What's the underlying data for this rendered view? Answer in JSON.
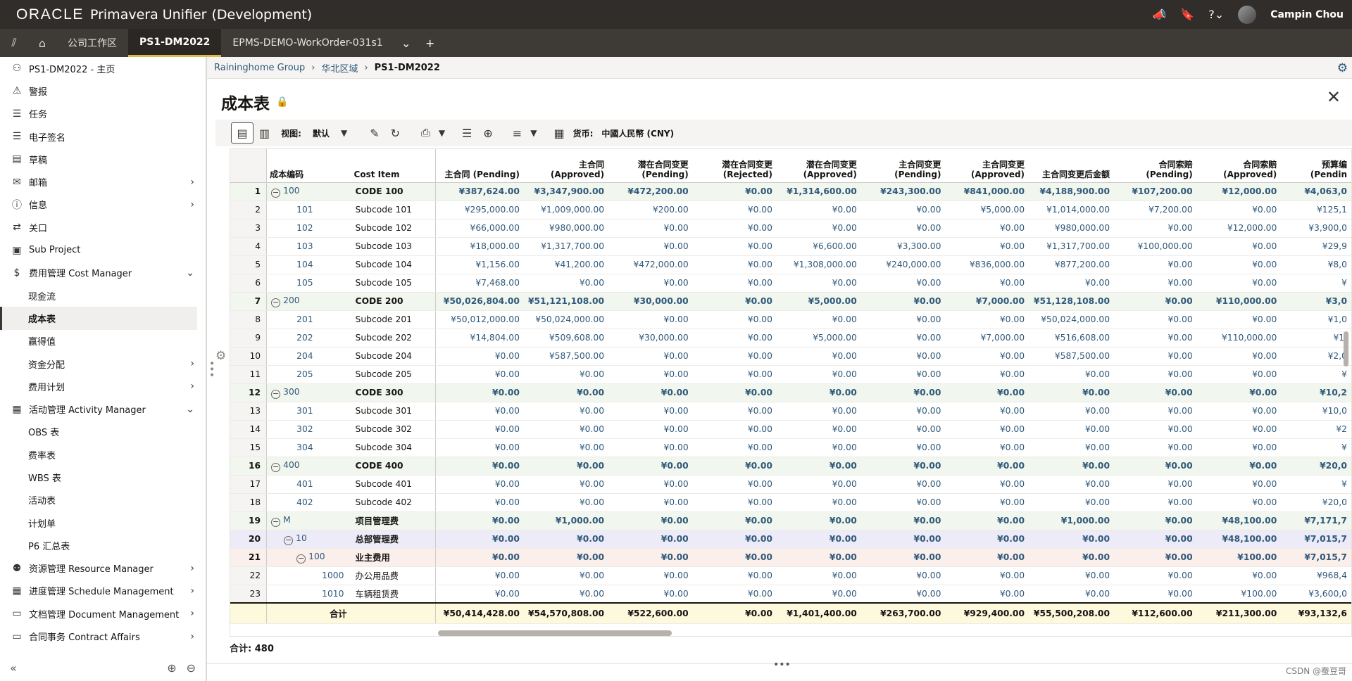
{
  "app": {
    "brand_oracle": "ORACLE",
    "brand_product": "Primavera Unifier",
    "brand_env": "(Development)",
    "user": "Campin Chou"
  },
  "tabs": [
    {
      "label": "公司工作区",
      "active": false
    },
    {
      "label": "PS1-DM2022",
      "active": true
    },
    {
      "label": "EPMS-DEMO-WorkOrder-031s1",
      "active": false
    }
  ],
  "sidebar": {
    "items": [
      {
        "label": "PS1-DM2022 - 主页",
        "icon": "project-icon",
        "glyph": "⚇",
        "level": 0,
        "chev": ""
      },
      {
        "label": "警报",
        "icon": "alert-icon",
        "glyph": "⚠",
        "level": 0,
        "chev": ""
      },
      {
        "label": "任务",
        "icon": "tasks-icon",
        "glyph": "☰",
        "level": 0,
        "chev": ""
      },
      {
        "label": "电子签名",
        "icon": "signature-icon",
        "glyph": "☰",
        "level": 0,
        "chev": ""
      },
      {
        "label": "草稿",
        "icon": "drafts-icon",
        "glyph": "▤",
        "level": 0,
        "chev": ""
      },
      {
        "label": "邮箱",
        "icon": "mail-icon",
        "glyph": "✉",
        "level": 0,
        "chev": "›"
      },
      {
        "label": "信息",
        "icon": "info-icon",
        "glyph": "ⓘ",
        "level": 0,
        "chev": "›"
      },
      {
        "label": "关口",
        "icon": "gates-icon",
        "glyph": "⇄",
        "level": 0,
        "chev": ""
      },
      {
        "label": "Sub Project",
        "icon": "subproject-icon",
        "glyph": "▣",
        "level": 0,
        "chev": ""
      },
      {
        "label": "费用管理 Cost Manager",
        "icon": "dollar-icon",
        "glyph": "$",
        "level": 0,
        "chev": "⌄"
      },
      {
        "label": "现金流",
        "icon": "",
        "glyph": "",
        "level": 1,
        "chev": ""
      },
      {
        "label": "成本表",
        "icon": "",
        "glyph": "",
        "level": 1,
        "chev": "",
        "selected": true
      },
      {
        "label": "赢得值",
        "icon": "",
        "glyph": "",
        "level": 1,
        "chev": ""
      },
      {
        "label": "资金分配",
        "icon": "",
        "glyph": "",
        "level": 1,
        "chev": "›"
      },
      {
        "label": "费用计划",
        "icon": "",
        "glyph": "",
        "level": 1,
        "chev": "›"
      },
      {
        "label": "活动管理 Activity Manager",
        "icon": "calendar-icon",
        "glyph": "▦",
        "level": 0,
        "chev": "⌄"
      },
      {
        "label": "OBS 表",
        "icon": "",
        "glyph": "",
        "level": 1,
        "chev": ""
      },
      {
        "label": "费率表",
        "icon": "",
        "glyph": "",
        "level": 1,
        "chev": ""
      },
      {
        "label": "WBS 表",
        "icon": "",
        "glyph": "",
        "level": 1,
        "chev": ""
      },
      {
        "label": "活动表",
        "icon": "",
        "glyph": "",
        "level": 1,
        "chev": ""
      },
      {
        "label": "计划单",
        "icon": "",
        "glyph": "",
        "level": 1,
        "chev": ""
      },
      {
        "label": "P6 汇总表",
        "icon": "",
        "glyph": "",
        "level": 1,
        "chev": ""
      },
      {
        "label": "资源管理 Resource Manager",
        "icon": "people-icon",
        "glyph": "⚉",
        "level": 0,
        "chev": "›"
      },
      {
        "label": "进度管理 Schedule Management",
        "icon": "schedule-icon",
        "glyph": "▦",
        "level": 0,
        "chev": "›"
      },
      {
        "label": "文档管理 Document Management",
        "icon": "folder-icon",
        "glyph": "▭",
        "level": 0,
        "chev": "›"
      },
      {
        "label": "合同事务 Contract Affairs",
        "icon": "folder-icon",
        "glyph": "▭",
        "level": 0,
        "chev": "›"
      }
    ]
  },
  "breadcrumb": [
    "Raininghome Group",
    "华北区域",
    "PS1-DM2022"
  ],
  "page": {
    "title": "成本表"
  },
  "toolbar": {
    "view_label": "视图:",
    "view_value": "默认",
    "currency_label": "货币:",
    "currency_value": "中國人民幣 (CNY)"
  },
  "grid": {
    "columns": [
      "成本编码",
      "Cost Item",
      "主合同 (Pending)",
      "主合同 (Approved)",
      "潜在合同变更 (Pending)",
      "潜在合同变更 (Rejected)",
      "潜在合同变更 (Approved)",
      "主合同变更 (Pending)",
      "主合同变更 (Approved)",
      "主合同变更后金额",
      "合同索赔 (Pending)",
      "合同索赔 (Approved)",
      "预算编 (Pendin"
    ],
    "rows": [
      {
        "n": "1",
        "code": "100",
        "item": "CODE 100",
        "lvl": 0,
        "indent": 0,
        "vals": [
          "¥387,624.00",
          "¥3,347,900.00",
          "¥472,200.00",
          "¥0.00",
          "¥1,314,600.00",
          "¥243,300.00",
          "¥841,000.00",
          "¥4,188,900.00",
          "¥107,200.00",
          "¥12,000.00",
          "¥4,063,0"
        ]
      },
      {
        "n": "2",
        "code": "101",
        "item": "Subcode 101",
        "lvl": -1,
        "indent": 1,
        "vals": [
          "¥295,000.00",
          "¥1,009,000.00",
          "¥200.00",
          "¥0.00",
          "¥0.00",
          "¥0.00",
          "¥5,000.00",
          "¥1,014,000.00",
          "¥7,200.00",
          "¥0.00",
          "¥125,1"
        ]
      },
      {
        "n": "3",
        "code": "102",
        "item": "Subcode 102",
        "lvl": -1,
        "indent": 1,
        "vals": [
          "¥66,000.00",
          "¥980,000.00",
          "¥0.00",
          "¥0.00",
          "¥0.00",
          "¥0.00",
          "¥0.00",
          "¥980,000.00",
          "¥0.00",
          "¥12,000.00",
          "¥3,900,0"
        ]
      },
      {
        "n": "4",
        "code": "103",
        "item": "Subcode 103",
        "lvl": -1,
        "indent": 1,
        "vals": [
          "¥18,000.00",
          "¥1,317,700.00",
          "¥0.00",
          "¥0.00",
          "¥6,600.00",
          "¥3,300.00",
          "¥0.00",
          "¥1,317,700.00",
          "¥100,000.00",
          "¥0.00",
          "¥29,9"
        ]
      },
      {
        "n": "5",
        "code": "104",
        "item": "Subcode 104",
        "lvl": -1,
        "indent": 1,
        "vals": [
          "¥1,156.00",
          "¥41,200.00",
          "¥472,000.00",
          "¥0.00",
          "¥1,308,000.00",
          "¥240,000.00",
          "¥836,000.00",
          "¥877,200.00",
          "¥0.00",
          "¥0.00",
          "¥8,0"
        ]
      },
      {
        "n": "6",
        "code": "105",
        "item": "Subcode 105",
        "lvl": -1,
        "indent": 1,
        "vals": [
          "¥7,468.00",
          "¥0.00",
          "¥0.00",
          "¥0.00",
          "¥0.00",
          "¥0.00",
          "¥0.00",
          "¥0.00",
          "¥0.00",
          "¥0.00",
          "¥"
        ]
      },
      {
        "n": "7",
        "code": "200",
        "item": "CODE 200",
        "lvl": 0,
        "indent": 0,
        "vals": [
          "¥50,026,804.00",
          "¥51,121,108.00",
          "¥30,000.00",
          "¥0.00",
          "¥5,000.00",
          "¥0.00",
          "¥7,000.00",
          "¥51,128,108.00",
          "¥0.00",
          "¥110,000.00",
          "¥3,0"
        ]
      },
      {
        "n": "8",
        "code": "201",
        "item": "Subcode 201",
        "lvl": -1,
        "indent": 1,
        "vals": [
          "¥50,012,000.00",
          "¥50,024,000.00",
          "¥0.00",
          "¥0.00",
          "¥0.00",
          "¥0.00",
          "¥0.00",
          "¥50,024,000.00",
          "¥0.00",
          "¥0.00",
          "¥1,0"
        ]
      },
      {
        "n": "9",
        "code": "202",
        "item": "Subcode 202",
        "lvl": -1,
        "indent": 1,
        "vals": [
          "¥14,804.00",
          "¥509,608.00",
          "¥30,000.00",
          "¥0.00",
          "¥5,000.00",
          "¥0.00",
          "¥7,000.00",
          "¥516,608.00",
          "¥0.00",
          "¥110,000.00",
          "¥1,"
        ]
      },
      {
        "n": "10",
        "code": "204",
        "item": "Subcode 204",
        "lvl": -1,
        "indent": 1,
        "vals": [
          "¥0.00",
          "¥587,500.00",
          "¥0.00",
          "¥0.00",
          "¥0.00",
          "¥0.00",
          "¥0.00",
          "¥587,500.00",
          "¥0.00",
          "¥0.00",
          "¥2,0"
        ]
      },
      {
        "n": "11",
        "code": "205",
        "item": "Subcode 205",
        "lvl": -1,
        "indent": 1,
        "vals": [
          "¥0.00",
          "¥0.00",
          "¥0.00",
          "¥0.00",
          "¥0.00",
          "¥0.00",
          "¥0.00",
          "¥0.00",
          "¥0.00",
          "¥0.00",
          "¥"
        ]
      },
      {
        "n": "12",
        "code": "300",
        "item": "CODE 300",
        "lvl": 0,
        "indent": 0,
        "vals": [
          "¥0.00",
          "¥0.00",
          "¥0.00",
          "¥0.00",
          "¥0.00",
          "¥0.00",
          "¥0.00",
          "¥0.00",
          "¥0.00",
          "¥0.00",
          "¥10,2"
        ]
      },
      {
        "n": "13",
        "code": "301",
        "item": "Subcode 301",
        "lvl": -1,
        "indent": 1,
        "vals": [
          "¥0.00",
          "¥0.00",
          "¥0.00",
          "¥0.00",
          "¥0.00",
          "¥0.00",
          "¥0.00",
          "¥0.00",
          "¥0.00",
          "¥0.00",
          "¥10,0"
        ]
      },
      {
        "n": "14",
        "code": "302",
        "item": "Subcode 302",
        "lvl": -1,
        "indent": 1,
        "vals": [
          "¥0.00",
          "¥0.00",
          "¥0.00",
          "¥0.00",
          "¥0.00",
          "¥0.00",
          "¥0.00",
          "¥0.00",
          "¥0.00",
          "¥0.00",
          "¥2"
        ]
      },
      {
        "n": "15",
        "code": "304",
        "item": "Subcode 304",
        "lvl": -1,
        "indent": 1,
        "vals": [
          "¥0.00",
          "¥0.00",
          "¥0.00",
          "¥0.00",
          "¥0.00",
          "¥0.00",
          "¥0.00",
          "¥0.00",
          "¥0.00",
          "¥0.00",
          "¥"
        ]
      },
      {
        "n": "16",
        "code": "400",
        "item": "CODE 400",
        "lvl": 0,
        "indent": 0,
        "vals": [
          "¥0.00",
          "¥0.00",
          "¥0.00",
          "¥0.00",
          "¥0.00",
          "¥0.00",
          "¥0.00",
          "¥0.00",
          "¥0.00",
          "¥0.00",
          "¥20,0"
        ]
      },
      {
        "n": "17",
        "code": "401",
        "item": "Subcode 401",
        "lvl": -1,
        "indent": 1,
        "vals": [
          "¥0.00",
          "¥0.00",
          "¥0.00",
          "¥0.00",
          "¥0.00",
          "¥0.00",
          "¥0.00",
          "¥0.00",
          "¥0.00",
          "¥0.00",
          "¥"
        ]
      },
      {
        "n": "18",
        "code": "402",
        "item": "Subcode 402",
        "lvl": -1,
        "indent": 1,
        "vals": [
          "¥0.00",
          "¥0.00",
          "¥0.00",
          "¥0.00",
          "¥0.00",
          "¥0.00",
          "¥0.00",
          "¥0.00",
          "¥0.00",
          "¥0.00",
          "¥20,0"
        ]
      },
      {
        "n": "19",
        "code": "M",
        "item": "项目管理费",
        "lvl": 0,
        "indent": 0,
        "vals": [
          "¥0.00",
          "¥1,000.00",
          "¥0.00",
          "¥0.00",
          "¥0.00",
          "¥0.00",
          "¥0.00",
          "¥1,000.00",
          "¥0.00",
          "¥48,100.00",
          "¥7,171,7"
        ]
      },
      {
        "n": "20",
        "code": "10",
        "item": "总部管理费",
        "lvl": 1,
        "indent": 1,
        "vals": [
          "¥0.00",
          "¥0.00",
          "¥0.00",
          "¥0.00",
          "¥0.00",
          "¥0.00",
          "¥0.00",
          "¥0.00",
          "¥0.00",
          "¥48,100.00",
          "¥7,015,7"
        ]
      },
      {
        "n": "21",
        "code": "100",
        "item": "业主费用",
        "lvl": 2,
        "indent": 2,
        "vals": [
          "¥0.00",
          "¥0.00",
          "¥0.00",
          "¥0.00",
          "¥0.00",
          "¥0.00",
          "¥0.00",
          "¥0.00",
          "¥0.00",
          "¥100.00",
          "¥7,015,7"
        ]
      },
      {
        "n": "22",
        "code": "1000",
        "item": "办公用品费",
        "lvl": -1,
        "indent": 3,
        "vals": [
          "¥0.00",
          "¥0.00",
          "¥0.00",
          "¥0.00",
          "¥0.00",
          "¥0.00",
          "¥0.00",
          "¥0.00",
          "¥0.00",
          "¥0.00",
          "¥968,4"
        ]
      },
      {
        "n": "23",
        "code": "1010",
        "item": "车辆租赁费",
        "lvl": -1,
        "indent": 3,
        "vals": [
          "¥0.00",
          "¥0.00",
          "¥0.00",
          "¥0.00",
          "¥0.00",
          "¥0.00",
          "¥0.00",
          "¥0.00",
          "¥0.00",
          "¥100.00",
          "¥3,600,0"
        ]
      }
    ],
    "total": {
      "label": "合计",
      "vals": [
        "¥50,414,428.00",
        "¥54,570,808.00",
        "¥522,600.00",
        "¥0.00",
        "¥1,401,400.00",
        "¥263,700.00",
        "¥929,400.00",
        "¥55,500,208.00",
        "¥112,600.00",
        "¥211,300.00",
        "¥93,132,6"
      ]
    }
  },
  "footer": {
    "record_count": "合计:  480",
    "watermark": "CSDN @蚕豆哥"
  }
}
